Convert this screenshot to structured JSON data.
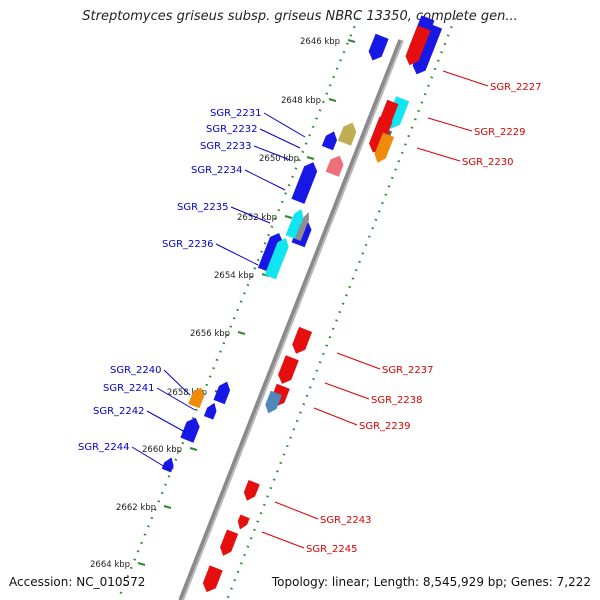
{
  "title": "Streptomyces griseus subsp. griseus NBRC 13350, complete gen...",
  "accession": "Accession: NC_010572",
  "topology": "Topology: linear; Length: 8,545,929 bp; Genes: 7,222",
  "colors": {
    "axis": "#8a8a8a",
    "ruler": "#2e8b2e",
    "forward_label": "#0000cc",
    "reverse_label": "#dd0000",
    "forward": "#1818e6",
    "reverse": "#e60f0f",
    "cyan": "#11e6f0",
    "olive": "#bfae55",
    "pink": "#ee6f7a",
    "gray": "#8f8f8f",
    "darkgray": "#606060",
    "orange": "#f08a0a",
    "steel": "#4f86bb"
  },
  "ruler_labels": [
    "2646 kbp",
    "2648 kbp",
    "2650 kbp",
    "2652 kbp",
    "2654 kbp",
    "2656 kbp",
    "2658 kbp",
    "2660 kbp",
    "2662 kbp",
    "2664 kbp"
  ],
  "left_labels": [
    "SGR_2231",
    "SGR_2232",
    "SGR_2233",
    "SGR_2234",
    "SGR_2235",
    "SGR_2236",
    "SGR_2240",
    "SGR_2241",
    "SGR_2242",
    "SGR_2244"
  ],
  "right_labels": [
    "SGR_2227",
    "SGR_2229",
    "SGR_2230",
    "SGR_2237",
    "SGR_2238",
    "SGR_2239",
    "SGR_2243",
    "SGR_2245"
  ],
  "genes": [
    {
      "side": "inner",
      "color": "blue"
    },
    {
      "side": "inner",
      "color": "olive"
    },
    {
      "side": "inner",
      "color": "blue"
    },
    {
      "side": "inner",
      "color": "pink"
    },
    {
      "side": "inner",
      "color": "blue"
    },
    {
      "side": "inner",
      "color": "blue"
    },
    {
      "side": "outer",
      "color": "cyan"
    },
    {
      "side": "outer",
      "color": "gray"
    },
    {
      "side": "inner",
      "color": "blue"
    },
    {
      "side": "outer",
      "color": "cyan"
    },
    {
      "side": "inner",
      "color": "blue"
    },
    {
      "side": "inner",
      "color": "blue"
    },
    {
      "side": "outer",
      "color": "orange"
    },
    {
      "side": "inner",
      "color": "blue"
    },
    {
      "side": "inner",
      "color": "blue"
    },
    {
      "side": "inner",
      "color": "blue"
    },
    {
      "side": "inner",
      "color": "blue"
    },
    {
      "side": "outer",
      "color": "red"
    },
    {
      "side": "outer",
      "color": "cyan"
    },
    {
      "side": "outer",
      "color": "red"
    },
    {
      "side": "outer",
      "color": "darkgray"
    },
    {
      "side": "outer",
      "color": "red"
    },
    {
      "side": "outer",
      "color": "orange"
    },
    {
      "side": "inner",
      "color": "red"
    },
    {
      "side": "inner",
      "color": "red"
    },
    {
      "side": "inner",
      "color": "red"
    },
    {
      "side": "inner",
      "color": "steel"
    },
    {
      "side": "inner",
      "color": "red"
    },
    {
      "side": "inner",
      "color": "red"
    },
    {
      "side": "inner",
      "color": "red"
    },
    {
      "side": "inner",
      "color": "red"
    }
  ]
}
